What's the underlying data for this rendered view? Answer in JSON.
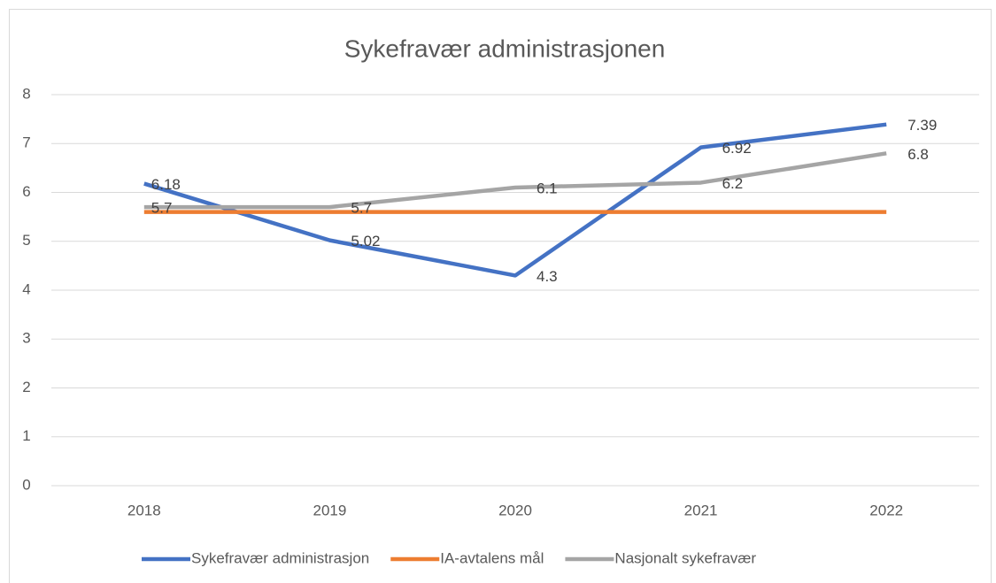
{
  "chart_data": {
    "type": "line",
    "title": "Sykefravær administrasjonen",
    "categories": [
      "2018",
      "2019",
      "2020",
      "2021",
      "2022"
    ],
    "series": [
      {
        "name": "Sykefravær administrasjon",
        "color": "#4472c4",
        "values": [
          6.18,
          5.02,
          4.3,
          6.92,
          7.39
        ],
        "data_labels": true
      },
      {
        "name": "IA-avtalens mål",
        "color": "#ed7d31",
        "values": [
          5.6,
          5.6,
          5.6,
          5.6,
          5.6
        ],
        "data_labels": false
      },
      {
        "name": "Nasjonalt sykefravær",
        "color": "#a5a5a5",
        "values": [
          5.7,
          5.7,
          6.1,
          6.2,
          6.8
        ],
        "data_labels": true
      }
    ],
    "ylim": [
      0,
      8
    ],
    "yticks": [
      0,
      1,
      2,
      3,
      4,
      5,
      6,
      7,
      8
    ],
    "grid": true,
    "legend": "bottom"
  }
}
